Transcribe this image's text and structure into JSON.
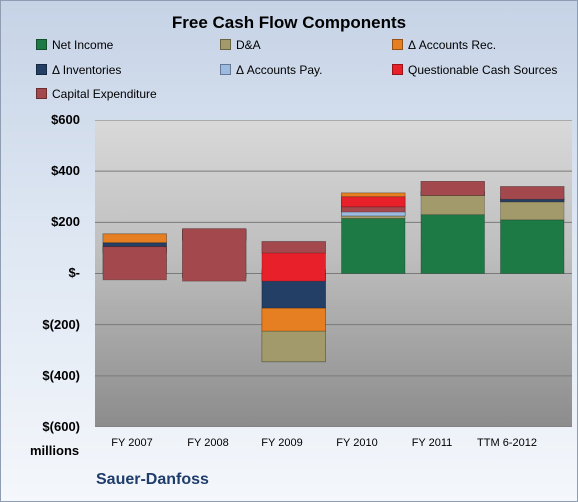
{
  "chart_data": {
    "type": "bar",
    "stacked": true,
    "title": "Free Cash Flow Components",
    "categories": [
      "FY 2007",
      "FY 2008",
      "FY 2009",
      "FY 2010",
      "FY 2011",
      "TTM 6-2012"
    ],
    "y_tick_labels": [
      "$(600)",
      "$(400)",
      "$(200)",
      "$-",
      "$200",
      "$400",
      "$600"
    ],
    "y_ticks": [
      -600,
      -400,
      -200,
      0,
      200,
      400,
      600
    ],
    "ylim": [
      -600,
      600
    ],
    "units_label": "millions",
    "grid": true,
    "legend_position": "top",
    "series": [
      {
        "name": "Net Income",
        "color": "#1e7a45",
        "values": [
          55,
          -15,
          -345,
          215,
          230,
          210
        ]
      },
      {
        "name": "D&A",
        "color": "#a39a6b",
        "values": [
          100,
          110,
          120,
          100,
          90,
          85
        ]
      },
      {
        "name": "Δ Accounts Rec.",
        "color": "#e67e22",
        "values": [
          -35,
          75,
          90,
          -65,
          0,
          -15
        ]
      },
      {
        "name": "Δ Inventories",
        "color": "#243f66",
        "values": [
          -40,
          -30,
          150,
          -25,
          -15,
          15
        ]
      },
      {
        "name": "Δ Accounts Pay.",
        "color": "#9dbbe0",
        "values": [
          10,
          -10,
          -45,
          75,
          5,
          5
        ]
      },
      {
        "name": "Questionable Cash Sources",
        "color": "#e8202a",
        "values": [
          15,
          45,
          155,
          -40,
          50,
          40
        ]
      },
      {
        "name": "Capital Expenditure",
        "color": "#a3484c",
        "values": [
          -130,
          -205,
          -45,
          -20,
          -55,
          -50
        ]
      }
    ]
  },
  "footer": {
    "company": "Sauer-Danfoss"
  }
}
